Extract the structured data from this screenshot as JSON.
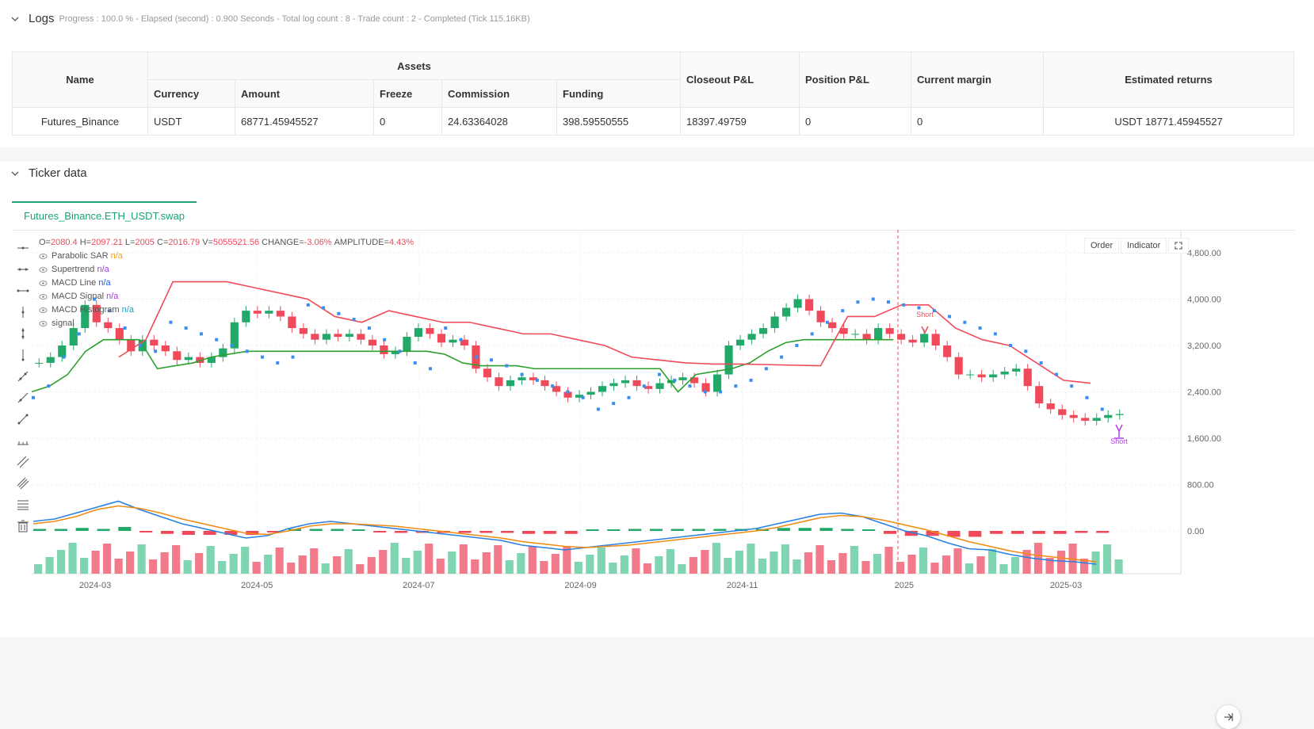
{
  "logs": {
    "title": "Logs",
    "meta": "Progress : 100.0 % - Elapsed (second) : 0.900 Seconds - Total log count : 8 - Trade count : 2 - Completed (Tick 115.16KB)"
  },
  "assets_table": {
    "group_header": "Assets",
    "headers": {
      "name": "Name",
      "currency": "Currency",
      "amount": "Amount",
      "freeze": "Freeze",
      "commission": "Commission",
      "funding": "Funding",
      "closeout": "Closeout P&L",
      "position": "Position P&L",
      "margin": "Current margin",
      "returns": "Estimated returns"
    },
    "row": {
      "name": "Futures_Binance",
      "currency": "USDT",
      "amount": "68771.45945527",
      "freeze": "0",
      "commission": "24.63364028",
      "funding": "398.59550555",
      "closeout": "18397.49759",
      "position": "0",
      "margin": "0",
      "returns": "USDT 18771.45945527"
    }
  },
  "ticker": {
    "title": "Ticker data",
    "tab": "Futures_Binance.ETH_USDT.swap"
  },
  "legend": {
    "ohlc": {
      "o_label": "O=",
      "o": "2080.4",
      "h_label": "H=",
      "h": "2097.21",
      "l_label": "L=",
      "l": "2005",
      "c_label": "C=",
      "c": "2016.79",
      "v_label": "V=",
      "v": "5055521.56",
      "change_label": "CHANGE=",
      "change": "-3.06%",
      "amp_label": "AMPLITUDE=",
      "amp": "4.43%"
    },
    "items": [
      {
        "name": "Parabolic SAR",
        "value": "n/a",
        "color": "#f0a020"
      },
      {
        "name": "Supertrend",
        "value": "n/a",
        "color": "#a040e0"
      },
      {
        "name": "MACD Line",
        "value": "n/a",
        "color": "#2060e0"
      },
      {
        "name": "MACD Signal",
        "value": "n/a",
        "color": "#a040e0"
      },
      {
        "name": "MACD Histogram",
        "value": "n/a",
        "color": "#20a0c0"
      },
      {
        "name": "signal",
        "value": "",
        "color": "#555"
      }
    ]
  },
  "buttons": {
    "order": "Order",
    "indicator": "Indicator"
  },
  "annotations": {
    "short1": "Short",
    "short2": "Short"
  },
  "chart_data": {
    "type": "candlestick",
    "symbol": "Futures_Binance.ETH_USDT.swap",
    "x_ticks": [
      "2024-03",
      "2024-05",
      "2024-07",
      "2024-09",
      "2024-11",
      "2025",
      "2025-03"
    ],
    "y_ticks": [
      "4,800.00",
      "4,000.00",
      "3,200.00",
      "2,400.00",
      "1,600.00",
      "800.00",
      "0.00"
    ],
    "ylim": [
      0,
      4800
    ],
    "close_series": [
      2900,
      3000,
      3200,
      3500,
      3900,
      3600,
      3500,
      3300,
      3100,
      3300,
      3200,
      3100,
      2950,
      3000,
      2900,
      3000,
      3150,
      3600,
      3800,
      3750,
      3800,
      3700,
      3500,
      3400,
      3300,
      3400,
      3350,
      3400,
      3300,
      3200,
      3050,
      3100,
      3350,
      3500,
      3400,
      3250,
      3300,
      3200,
      2800,
      2650,
      2500,
      2600,
      2650,
      2600,
      2500,
      2400,
      2300,
      2350,
      2400,
      2500,
      2550,
      2600,
      2500,
      2450,
      2550,
      2600,
      2650,
      2550,
      2400,
      2700,
      3200,
      3300,
      3400,
      3500,
      3700,
      3850,
      4000,
      3800,
      3600,
      3500,
      3400,
      3400,
      3300,
      3500,
      3400,
      3300,
      3250,
      3400,
      3200,
      3000,
      2700,
      2700,
      2650,
      2700,
      2750,
      2800,
      2500,
      2200,
      2100,
      2000,
      1950,
      1900,
      1950,
      2000,
      2016.79
    ],
    "supertrend_up": [
      2400,
      2500,
      2700,
      3100,
      3300,
      3300,
      3300,
      2800,
      2850,
      2900,
      3000,
      3050,
      3100,
      3100,
      3100,
      3100,
      3100,
      3100,
      3100,
      3100,
      3100,
      3100,
      3100,
      3050,
      2900,
      2850,
      2850,
      2850,
      2800,
      2800,
      2800,
      2800,
      2800,
      2800,
      2800,
      2800,
      2400,
      2700,
      2750,
      2800,
      2900,
      3100,
      3250,
      3300,
      3300,
      3300,
      3300,
      3300,
      3300
    ],
    "supertrend_down": [
      3000,
      3300,
      4300,
      4300,
      4300,
      4200,
      4100,
      4000,
      3700,
      3600,
      3800,
      3700,
      3600,
      3600,
      3500,
      3400,
      3400,
      3300,
      3200,
      3000,
      2950,
      2900,
      2880,
      2880,
      2870,
      2860,
      2850,
      3700,
      3700,
      3900,
      3900,
      3500,
      3300,
      3200,
      2900,
      2600,
      2550
    ],
    "sar_series": [
      2300,
      2500,
      3000,
      3400,
      4000,
      3800,
      3500,
      3200,
      3100,
      3600,
      3500,
      3400,
      3300,
      3200,
      3100,
      3000,
      2900,
      3000,
      3900,
      3850,
      3750,
      3650,
      3500,
      3300,
      3100,
      2900,
      2800,
      3500,
      3300,
      3000,
      2950,
      2850,
      2700,
      2600,
      2500,
      2400,
      2300,
      2100,
      2200,
      2300,
      2500,
      2700,
      2600,
      2500,
      2400,
      2400,
      2500,
      2600,
      2800,
      3000,
      3200,
      3400,
      3600,
      3800,
      3950,
      4000,
      3950,
      3900,
      3850,
      3800,
      3700,
      3600,
      3500,
      3400,
      3200,
      3100,
      2900,
      2700,
      2500,
      2300,
      2100
    ],
    "macd_line": [
      80,
      100,
      150,
      200,
      250,
      180,
      120,
      60,
      20,
      -20,
      -60,
      -40,
      20,
      60,
      80,
      60,
      40,
      20,
      0,
      -20,
      -40,
      -60,
      -80,
      -120,
      -140,
      -160,
      -140,
      -120,
      -100,
      -80,
      -60,
      -40,
      -20,
      0,
      20,
      60,
      100,
      140,
      150,
      120,
      60,
      0,
      -40,
      -100,
      -150,
      -160,
      -200,
      -230,
      -250,
      -260,
      -280
    ],
    "macd_signal": [
      60,
      80,
      120,
      180,
      210,
      190,
      150,
      100,
      60,
      20,
      -20,
      -30,
      0,
      40,
      60,
      60,
      50,
      40,
      20,
      0,
      -20,
      -40,
      -60,
      -90,
      -110,
      -130,
      -140,
      -130,
      -120,
      -100,
      -80,
      -60,
      -40,
      -20,
      0,
      30,
      70,
      110,
      130,
      120,
      90,
      50,
      10,
      -40,
      -90,
      -130,
      -170,
      -200,
      -220,
      -240,
      -260
    ]
  }
}
